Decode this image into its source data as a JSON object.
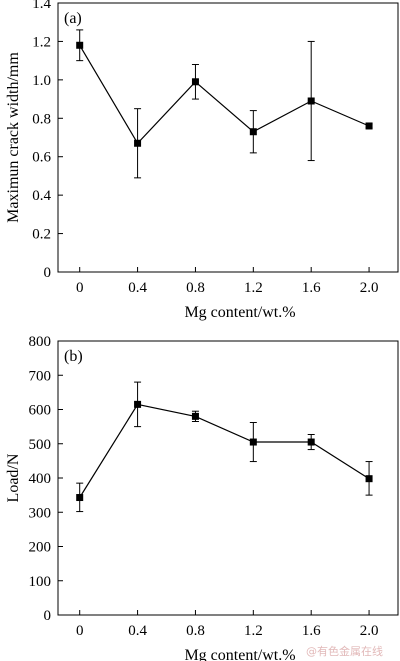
{
  "chart_data": [
    {
      "type": "line",
      "panel_label": "(a)",
      "xlabel": "Mg content/wt.%",
      "ylabel": "Maximun crack width/mm",
      "x": [
        0,
        0.4,
        0.8,
        1.2,
        1.6,
        2.0
      ],
      "xticks": [
        "0",
        "0.4",
        "0.8",
        "1.2",
        "1.6",
        "2.0"
      ],
      "xlim": [
        -0.15,
        2.2
      ],
      "ylim": [
        0,
        1.4
      ],
      "yticks": [
        "0",
        "0.2",
        "0.4",
        "0.6",
        "0.8",
        "1.0",
        "1.2",
        "1.4"
      ],
      "series": [
        {
          "values": [
            1.18,
            0.67,
            0.99,
            0.73,
            0.89,
            0.76
          ],
          "err_low": [
            1.1,
            0.49,
            0.9,
            0.62,
            0.58,
            0.75
          ],
          "err_high": [
            1.26,
            0.85,
            1.08,
            0.84,
            1.2,
            0.77
          ]
        }
      ],
      "grid": false
    },
    {
      "type": "line",
      "panel_label": "(b)",
      "xlabel": "Mg content/wt.%",
      "ylabel": "Load/N",
      "x": [
        0,
        0.4,
        0.8,
        1.2,
        1.6,
        2.0
      ],
      "xticks": [
        "0",
        "0.4",
        "0.8",
        "1.2",
        "1.6",
        "2.0"
      ],
      "xlim": [
        -0.15,
        2.2
      ],
      "ylim": [
        0,
        800
      ],
      "yticks": [
        "0",
        "100",
        "200",
        "300",
        "400",
        "500",
        "600",
        "700",
        "800"
      ],
      "series": [
        {
          "values": [
            343,
            615,
            580,
            505,
            505,
            398
          ],
          "err_low": [
            302,
            550,
            565,
            448,
            483,
            350
          ],
          "err_high": [
            385,
            680,
            595,
            562,
            527,
            448
          ]
        }
      ],
      "grid": false
    }
  ],
  "watermark": "@有色金属在线"
}
